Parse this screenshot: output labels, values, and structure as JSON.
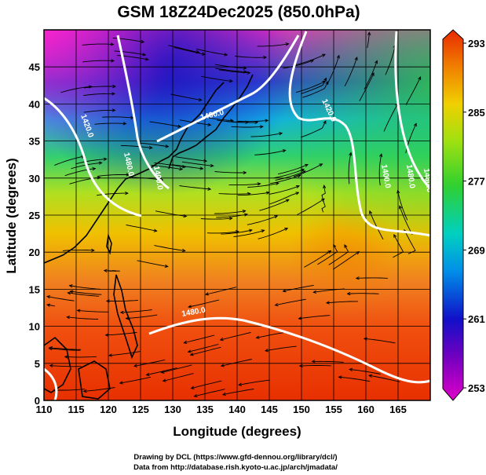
{
  "title": "GSM 18Z24Dec2025 (850.0hPa)",
  "x_axis": {
    "label": "Longitude (degrees)",
    "ticks": [
      "110",
      "115",
      "120",
      "125",
      "130",
      "135",
      "140",
      "145",
      "150",
      "155",
      "160",
      "165"
    ]
  },
  "y_axis": {
    "label": "Latitude (degrees)",
    "ticks": [
      "0",
      "5",
      "10",
      "15",
      "20",
      "25",
      "30",
      "35",
      "40",
      "45"
    ]
  },
  "colorbar": {
    "ticks": [
      "253",
      "261",
      "269",
      "277",
      "285",
      "293"
    ],
    "min": 253,
    "max": 293
  },
  "contour_labels": [
    "1400.0",
    "1400.0",
    "1420.0",
    "1480.0",
    "1480.0",
    "1420.0",
    "1400.0",
    "1480.0",
    "1480.0"
  ],
  "credits": {
    "line1": "Drawing by DCL (https://www.gfd-dennou.org/library/dcl/)",
    "line2": "Data from http://database.rish.kyoto-u.ac.jp/arch/jmadata/"
  },
  "chart_data": {
    "type": "heatmap",
    "title": "GSM 18Z24Dec2025 (850.0hPa)",
    "xlabel": "Longitude (degrees)",
    "ylabel": "Latitude (degrees)",
    "xlim": [
      110,
      170
    ],
    "ylim": [
      0,
      50
    ],
    "grid": true,
    "colorbar_range": [
      253,
      293
    ],
    "colorbar_ticks": [
      253,
      261,
      269,
      277,
      285,
      293
    ],
    "colors": {
      "low": "#d000d0",
      "cold": "#1010c8",
      "cyan": "#00c8e0",
      "green": "#40d020",
      "yellow": "#f0d000",
      "orange": "#f08000",
      "warm": "#e83000"
    }
  }
}
